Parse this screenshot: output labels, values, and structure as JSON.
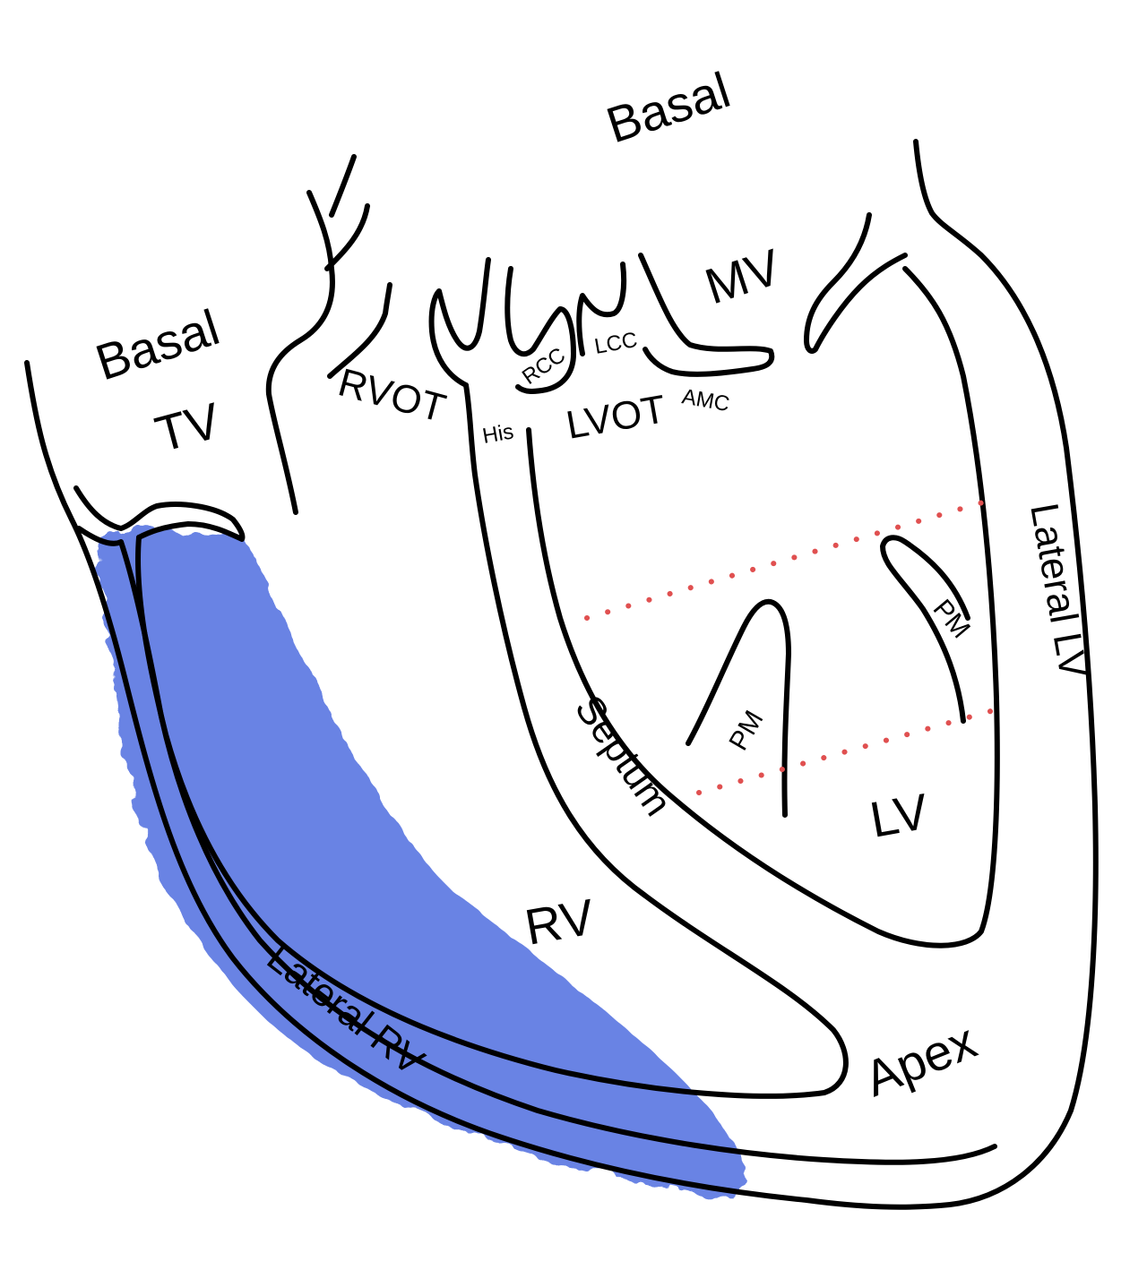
{
  "colors": {
    "rv_shading": "#4f6ee0",
    "outline": "#000000",
    "level_markers": "#e05050"
  },
  "labels": {
    "basal_top": "Basal",
    "basal_left": "Basal",
    "tv": "TV",
    "rvot": "RVOT",
    "mv": "MV",
    "rcc": "RCC",
    "lcc": "LCC",
    "his": "His",
    "lvot": "LVOT",
    "amc": "AMC",
    "lateral_lv": "Lateral LV",
    "pm_upper": "PM",
    "pm_lower": "PM",
    "septum": "Septum",
    "lv": "LV",
    "rv": "RV",
    "lateral_rv": "Lateral RV",
    "apex": "Apex"
  }
}
